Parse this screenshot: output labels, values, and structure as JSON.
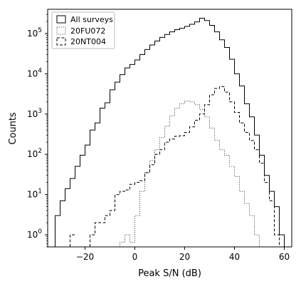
{
  "chart_data": {
    "type": "step-histogram",
    "xlabel": "Peak S/N (dB)",
    "ylabel": "Counts",
    "yscale": "log",
    "xlim": [
      -35,
      63
    ],
    "ylim": [
      0.5,
      400000
    ],
    "xticks": [
      -20,
      0,
      20,
      40,
      60
    ],
    "xtick_labels": [
      "−20",
      "0",
      "20",
      "40",
      "60"
    ],
    "yticks": [
      1,
      10,
      100,
      1000,
      10000,
      100000
    ],
    "ytick_labels": [
      {
        "base": "10",
        "exp": "0"
      },
      {
        "base": "10",
        "exp": "1"
      },
      {
        "base": "10",
        "exp": "2"
      },
      {
        "base": "10",
        "exp": "3"
      },
      {
        "base": "10",
        "exp": "4"
      },
      {
        "base": "10",
        "exp": "5"
      }
    ],
    "bin_width": 2,
    "legend_position": "top-left",
    "series": [
      {
        "name": "All surveys",
        "style": "solid",
        "color": "#000000",
        "bins": [
          [
            -31,
            3
          ],
          [
            -29,
            7
          ],
          [
            -27,
            14
          ],
          [
            -25,
            25
          ],
          [
            -23,
            50
          ],
          [
            -21,
            95
          ],
          [
            -19,
            170
          ],
          [
            -17,
            400
          ],
          [
            -15,
            600
          ],
          [
            -13,
            1400
          ],
          [
            -11,
            1900
          ],
          [
            -9,
            4000
          ],
          [
            -7,
            6200
          ],
          [
            -5,
            9500
          ],
          [
            -3,
            14000
          ],
          [
            -1,
            17000
          ],
          [
            1,
            22000
          ],
          [
            3,
            30000
          ],
          [
            5,
            40000
          ],
          [
            7,
            52000
          ],
          [
            9,
            65000
          ],
          [
            11,
            80000
          ],
          [
            13,
            95000
          ],
          [
            15,
            110000
          ],
          [
            17,
            125000
          ],
          [
            19,
            135000
          ],
          [
            21,
            150000
          ],
          [
            23,
            170000
          ],
          [
            25,
            195000
          ],
          [
            27,
            240000
          ],
          [
            29,
            210000
          ],
          [
            31,
            160000
          ],
          [
            33,
            110000
          ],
          [
            35,
            70000
          ],
          [
            37,
            45000
          ],
          [
            39,
            23000
          ],
          [
            41,
            10000
          ],
          [
            43,
            5000
          ],
          [
            45,
            1800
          ],
          [
            47,
            850
          ],
          [
            49,
            300
          ],
          [
            51,
            95
          ],
          [
            53,
            30
          ],
          [
            55,
            12
          ],
          [
            57,
            5
          ],
          [
            59,
            1
          ]
        ]
      },
      {
        "name": "20FU072",
        "style": "dotted",
        "color": "#555555",
        "bins": [
          [
            -5,
            0.65
          ],
          [
            -3,
            1
          ],
          [
            -1,
            0.65
          ],
          [
            1,
            3
          ],
          [
            3,
            12
          ],
          [
            5,
            35
          ],
          [
            7,
            70
          ],
          [
            9,
            130
          ],
          [
            11,
            260
          ],
          [
            13,
            500
          ],
          [
            15,
            900
          ],
          [
            17,
            1400
          ],
          [
            19,
            1800
          ],
          [
            21,
            2100
          ],
          [
            23,
            2000
          ],
          [
            25,
            1700
          ],
          [
            27,
            1300
          ],
          [
            29,
            850
          ],
          [
            31,
            450
          ],
          [
            33,
            220
          ],
          [
            35,
            130
          ],
          [
            37,
            95
          ],
          [
            39,
            50
          ],
          [
            41,
            28
          ],
          [
            43,
            12
          ],
          [
            45,
            6
          ],
          [
            47,
            3
          ],
          [
            49,
            1
          ]
        ]
      },
      {
        "name": "20NT004",
        "style": "dashed",
        "color": "#000000",
        "bins": [
          [
            -25,
            1
          ],
          [
            -17,
            1
          ],
          [
            -15,
            2
          ],
          [
            -13,
            2
          ],
          [
            -11,
            3
          ],
          [
            -9,
            4
          ],
          [
            -7,
            10
          ],
          [
            -5,
            12
          ],
          [
            -3,
            13
          ],
          [
            -1,
            18
          ],
          [
            1,
            20
          ],
          [
            3,
            22
          ],
          [
            5,
            35
          ],
          [
            7,
            55
          ],
          [
            9,
            100
          ],
          [
            11,
            130
          ],
          [
            13,
            200
          ],
          [
            15,
            240
          ],
          [
            17,
            280
          ],
          [
            19,
            290
          ],
          [
            21,
            350
          ],
          [
            23,
            480
          ],
          [
            25,
            700
          ],
          [
            27,
            1000
          ],
          [
            29,
            1700
          ],
          [
            31,
            3000
          ],
          [
            33,
            4300
          ],
          [
            35,
            4800
          ],
          [
            37,
            3500
          ],
          [
            39,
            2000
          ],
          [
            41,
            1100
          ],
          [
            43,
            600
          ],
          [
            45,
            350
          ],
          [
            47,
            220
          ],
          [
            49,
            130
          ],
          [
            51,
            60
          ],
          [
            53,
            20
          ],
          [
            55,
            7
          ],
          [
            57,
            1
          ]
        ]
      }
    ]
  }
}
